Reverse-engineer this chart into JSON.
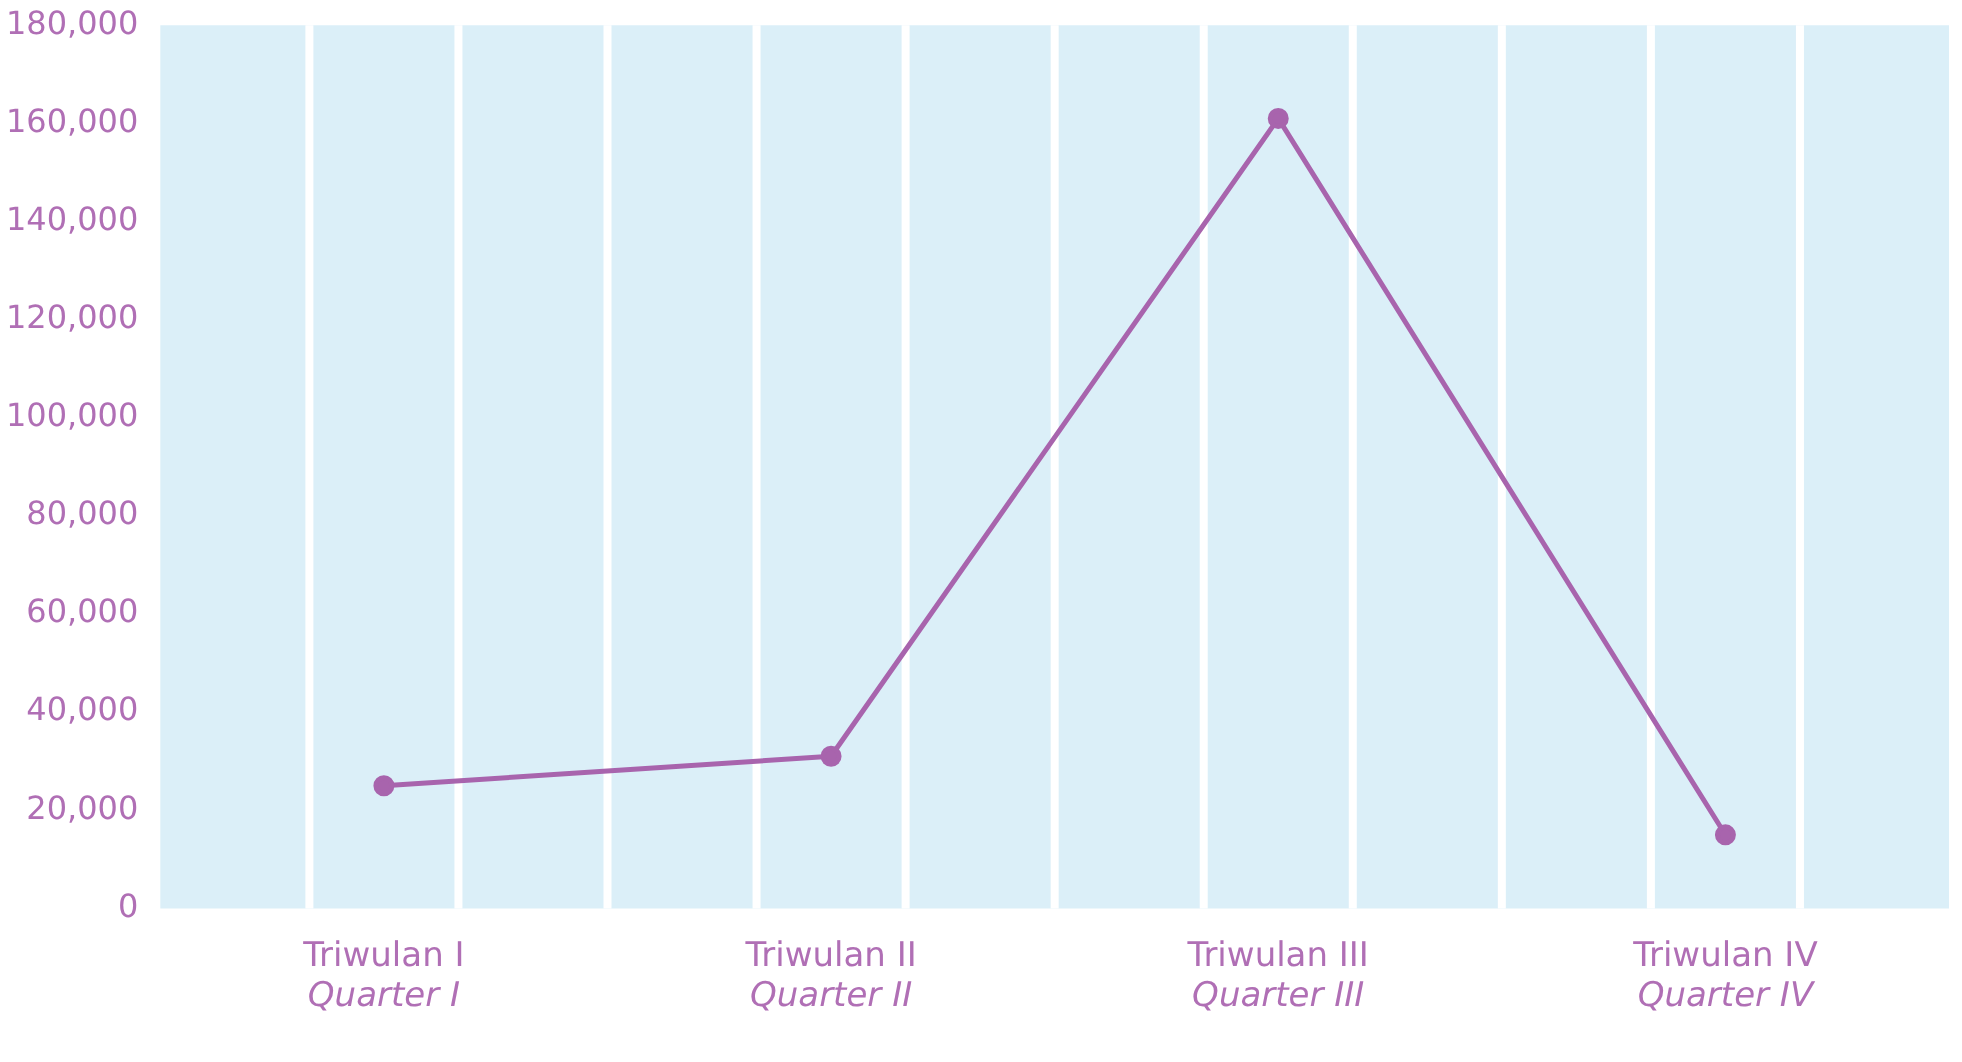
{
  "chart_data": {
    "type": "line",
    "categories": [
      "Triwulan I\nQuarter I",
      "Triwulan II\nQuarter II",
      "Triwulan III\nQuarter III",
      "Triwulan IV\nQuarter IV"
    ],
    "series": [
      {
        "color": "#a864ad",
        "values": [
          25000,
          31000,
          161000,
          15000
        ]
      }
    ],
    "ylim": [
      0,
      180000
    ],
    "yticks": [
      0,
      {
        "value": 20000,
        "label": "20,000"
      },
      {
        "value": 40000,
        "label": "40,000"
      },
      {
        "value": 60000,
        "label": "60,000"
      },
      {
        "value": 80000,
        "label": "80,000"
      },
      {
        "value": 100000,
        "label": "100,000"
      },
      {
        "value": 120000,
        "label": "120,000"
      },
      {
        "value": 140000,
        "label": "140,000"
      },
      {
        "value": 160000,
        "label": "160,000"
      },
      {
        "value": 180000,
        "label": "180,000"
      }
    ],
    "legend": false,
    "marker": "circle",
    "line_style": "solid"
  }
}
